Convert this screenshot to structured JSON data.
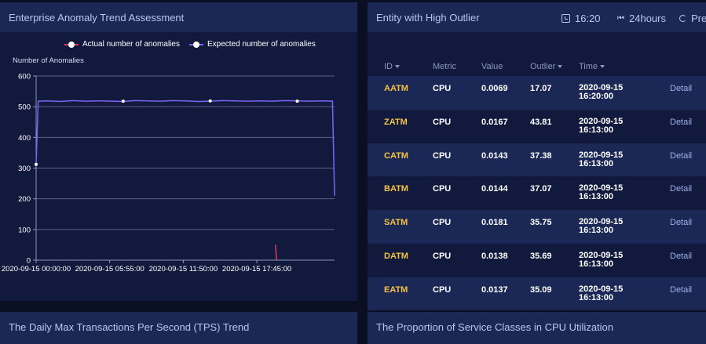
{
  "trend_panel": {
    "title": "Enterprise Anomaly Trend Assessment",
    "legend": [
      {
        "label": "Actual number of anomalies",
        "color": "#e8365d"
      },
      {
        "label": "Expected number of anomalies",
        "color": "#7d63f5"
      }
    ],
    "ylabel": "Number of Anomalies"
  },
  "chart_data": {
    "type": "line",
    "ylabel": "Number of Anomalies",
    "ylim": [
      0,
      600
    ],
    "yticks": [
      0,
      100,
      200,
      300,
      400,
      500,
      600
    ],
    "xtick_labels": [
      "2020-09-15 00:00:00",
      "2020-09-15 05:55:00",
      "2020-09-15 11:50:00",
      "2020-09-15 17:45:00"
    ],
    "x_minutes_range": [
      0,
      1440
    ],
    "grid": true,
    "legend_position": "top-center",
    "series": [
      {
        "name": "Expected number of anomalies",
        "color": "#7d63f5",
        "x_minutes": [
          0,
          10,
          60,
          120,
          180,
          240,
          300,
          360,
          420,
          480,
          540,
          600,
          660,
          720,
          780,
          840,
          900,
          960,
          1020,
          1080,
          1140,
          1200,
          1260,
          1320,
          1380,
          1430,
          1440
        ],
        "values": [
          312,
          518,
          519,
          517,
          520,
          518,
          519,
          518,
          517,
          520,
          519,
          518,
          520,
          519,
          517,
          518,
          520,
          519,
          518,
          519,
          518,
          520,
          519,
          518,
          519,
          518,
          210
        ],
        "marked_points": [
          [
            0,
            312
          ],
          [
            420,
            518
          ],
          [
            840,
            519
          ],
          [
            1260,
            518
          ]
        ]
      },
      {
        "name": "Actual number of anomalies",
        "color": "#e8365d",
        "x_minutes": [
          1155,
          1160
        ],
        "values": [
          50,
          0
        ]
      }
    ]
  },
  "outlier_panel": {
    "title": "Entity with High Outlier",
    "time": "16:20",
    "range": "24hours",
    "preset": "Pres",
    "columns": [
      "ID",
      "Metric",
      "Value",
      "Outlier",
      "Time"
    ],
    "rows": [
      {
        "id": "AATM",
        "metric": "CPU",
        "value": "0.0069",
        "outlier": "17.07",
        "date": "2020-09-15",
        "time": "16:20:00",
        "action": "Detail"
      },
      {
        "id": "ZATM",
        "metric": "CPU",
        "value": "0.0167",
        "outlier": "43.81",
        "date": "2020-09-15",
        "time": "16:13:00",
        "action": "Detail"
      },
      {
        "id": "CATM",
        "metric": "CPU",
        "value": "0.0143",
        "outlier": "37.38",
        "date": "2020-09-15",
        "time": "16:13:00",
        "action": "Detail"
      },
      {
        "id": "BATM",
        "metric": "CPU",
        "value": "0.0144",
        "outlier": "37.07",
        "date": "2020-09-15",
        "time": "16:13:00",
        "action": "Detail"
      },
      {
        "id": "SATM",
        "metric": "CPU",
        "value": "0.0181",
        "outlier": "35.75",
        "date": "2020-09-15",
        "time": "16:13:00",
        "action": "Detail"
      },
      {
        "id": "DATM",
        "metric": "CPU",
        "value": "0.0138",
        "outlier": "35.69",
        "date": "2020-09-15",
        "time": "16:13:00",
        "action": "Detail"
      },
      {
        "id": "EATM",
        "metric": "CPU",
        "value": "0.0137",
        "outlier": "35.09",
        "date": "2020-09-15",
        "time": "16:13:00",
        "action": "Detail"
      }
    ]
  },
  "tps_panel": {
    "title": "The Daily Max Transactions Per Second (TPS) Trend"
  },
  "proportion_panel": {
    "title": "The Proportion of Service Classes in CPU Utilization"
  },
  "colors": {
    "background": "#0a0f24",
    "panel": "#111a3d",
    "header": "#1b2855",
    "accent_id": "#f5c242",
    "title": "#b9c6f3"
  }
}
